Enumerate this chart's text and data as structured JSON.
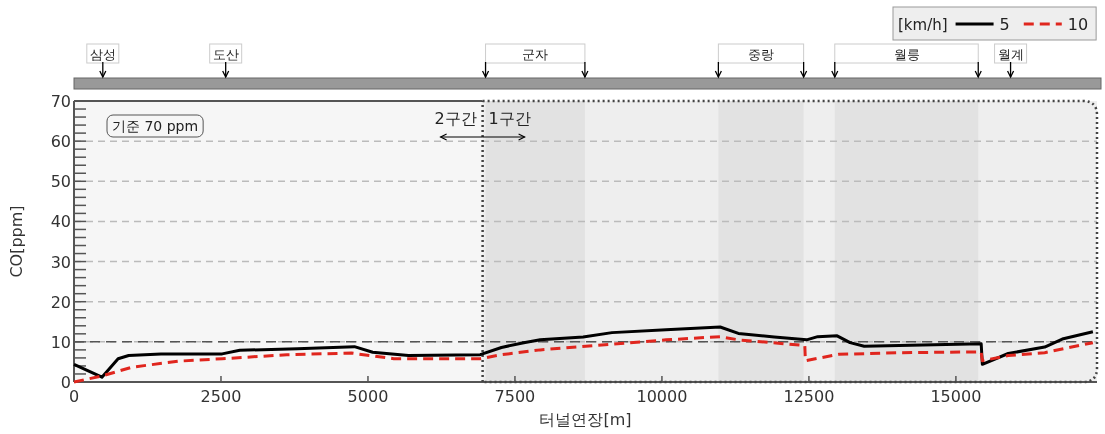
{
  "chart_data": {
    "type": "line",
    "xlabel": "터널연장[m]",
    "ylabel": "CO[ppm]",
    "legend_title": "[km/h]",
    "legend": "top right",
    "grid": "y",
    "xlim": [
      0,
      17400
    ],
    "ylim": [
      0,
      70
    ],
    "xticks": [
      0,
      2500,
      5000,
      7500,
      10000,
      12500,
      15000
    ],
    "yticks": [
      0,
      10,
      20,
      30,
      40,
      50,
      60,
      70
    ],
    "series": [
      {
        "name": "5",
        "color": "#000000",
        "line_style": "solid",
        "x": [
          0,
          475,
          750,
          930,
          1480,
          2520,
          2820,
          3800,
          4770,
          5080,
          5690,
          6910,
          7270,
          7650,
          7930,
          8660,
          9150,
          10070,
          10990,
          11300,
          11910,
          12460,
          12650,
          12980,
          13200,
          13440,
          15430,
          15450,
          15890,
          16510,
          16810,
          17330
        ],
        "values": [
          4.4,
          1.2,
          5.8,
          6.6,
          7.0,
          7.0,
          7.9,
          8.3,
          8.8,
          7.4,
          6.6,
          6.8,
          8.6,
          9.8,
          10.5,
          11.2,
          12.3,
          13.0,
          13.7,
          12.1,
          11.2,
          10.5,
          11.3,
          11.5,
          9.8,
          8.9,
          9.5,
          4.4,
          7.1,
          8.7,
          10.7,
          12.5
        ]
      },
      {
        "name": "10",
        "color": "#e0261e",
        "line_style": "dashed",
        "x": [
          0,
          475,
          990,
          1790,
          2520,
          3620,
          4720,
          5080,
          5440,
          6910,
          7270,
          7930,
          9150,
          10070,
          10990,
          11300,
          12340,
          12430,
          12440,
          13010,
          14060,
          15430,
          15450,
          15890,
          16510,
          17330
        ],
        "values": [
          0,
          1.5,
          3.7,
          5.2,
          5.8,
          6.8,
          7.2,
          6.5,
          5.8,
          5.8,
          6.8,
          8.0,
          9.4,
          10.5,
          11.3,
          10.5,
          9.2,
          9.1,
          5.3,
          6.9,
          7.3,
          7.5,
          5.3,
          6.6,
          7.3,
          9.8
        ]
      }
    ],
    "ref_lines": [
      {
        "axis": "x",
        "value": 490,
        "label": "삼성"
      },
      {
        "axis": "x",
        "value": 2580,
        "label": "도산"
      },
      {
        "axis": "x",
        "value": 15930,
        "label": "월계"
      },
      {
        "axis": "x",
        "value": 6950,
        "line_style": "dotted",
        "color": "#444444"
      },
      {
        "axis": "y",
        "value": 10,
        "line_style": "dashed",
        "color": "#555555"
      }
    ],
    "bands": [
      {
        "axis": "x",
        "from": 0,
        "to": 6950,
        "label": "2구간",
        "color": "#f6f6f6"
      },
      {
        "axis": "x",
        "from": 6950,
        "to": 17400,
        "label": "1구간",
        "color": "#eeeeee"
      },
      {
        "axis": "x",
        "from": 7000,
        "to": 8690,
        "label": "군자",
        "color": "#e2e2e2"
      },
      {
        "axis": "x",
        "from": 10960,
        "to": 12410,
        "label": "중랑",
        "color": "#e2e2e2"
      },
      {
        "axis": "x",
        "from": 12940,
        "to": 15380,
        "label": "월릉",
        "color": "#e2e2e2"
      }
    ],
    "annotations": [
      "기준 70 ppm"
    ]
  }
}
